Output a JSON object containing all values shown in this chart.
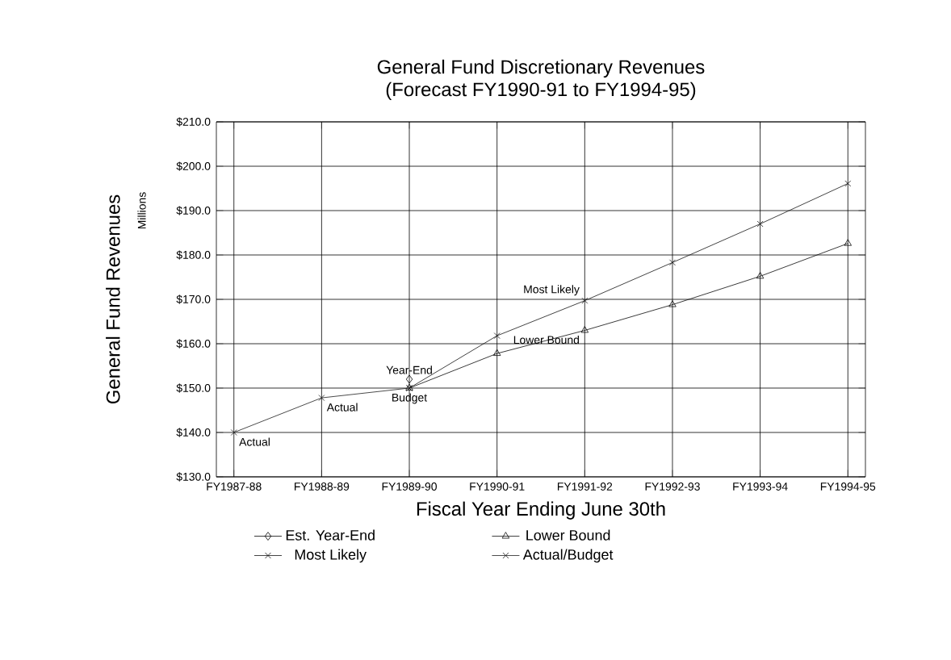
{
  "chart_data": {
    "type": "line",
    "title": "General Fund Discretionary Revenues",
    "subtitle": "(Forecast FY1990-91 to FY1994-95)",
    "xlabel": "Fiscal Year Ending June 30th",
    "ylabel": "General Fund Revenues",
    "categories": [
      "FY1987-88",
      "FY1988-89",
      "FY1989-90",
      "FY1990-91",
      "FY1991-92",
      "FY1992-93",
      "FY1993-94",
      "FY1994-95"
    ],
    "series": [
      {
        "name": "Est. Year-End",
        "color": "#000000",
        "marker": "diamond",
        "values": [
          null,
          null,
          152.0,
          null,
          null,
          null,
          null,
          null
        ]
      },
      {
        "name": "Lower Bound",
        "color": "#0a0a0a",
        "marker": "triangle",
        "values": [
          null,
          null,
          150.0,
          157.8,
          163.0,
          168.8,
          175.2,
          182.6
        ]
      },
      {
        "name": "Most Likely",
        "color": "#141414",
        "marker": "cross",
        "values": [
          null,
          null,
          150.0,
          161.8,
          169.7,
          178.3,
          187.0,
          196.1
        ]
      },
      {
        "name": "Actual/Budget",
        "color": "#1e1e1e",
        "marker": "cross",
        "values": [
          140.0,
          147.8,
          150.0,
          null,
          null,
          null,
          null,
          null
        ]
      }
    ],
    "ylim": [
      130,
      210
    ],
    "yticks": [
      {
        "value": 130,
        "label": "$130.0"
      },
      {
        "value": 140,
        "label": "$140.0"
      },
      {
        "value": 150,
        "label": "$150.0"
      },
      {
        "value": 160,
        "label": "$160.0"
      },
      {
        "value": 170,
        "label": "$170.0"
      },
      {
        "value": 180,
        "label": "$180.0"
      },
      {
        "value": 190,
        "label": "$190.0"
      },
      {
        "value": 200,
        "label": "$200.0"
      },
      {
        "value": 210,
        "label": "$210.0"
      }
    ],
    "grid": true,
    "legend": "bottom",
    "line_style": "solid",
    "annotations": [
      "Millions",
      {
        "text": "Actual",
        "x": "FY1987-88",
        "y": 140.0
      },
      {
        "text": "Actual",
        "x": "FY1988-89",
        "y": 147.8
      },
      {
        "text": "Year-End",
        "x": "FY1989-90",
        "y": 152.0
      },
      {
        "text": "Budget",
        "x": "FY1989-90",
        "y": 150.0
      },
      {
        "text": "Most Likely",
        "x": "FY1991-92",
        "y": 169.7
      },
      {
        "text": "Lower Bound",
        "x": "FY1991-92",
        "y": 163.0
      }
    ]
  }
}
